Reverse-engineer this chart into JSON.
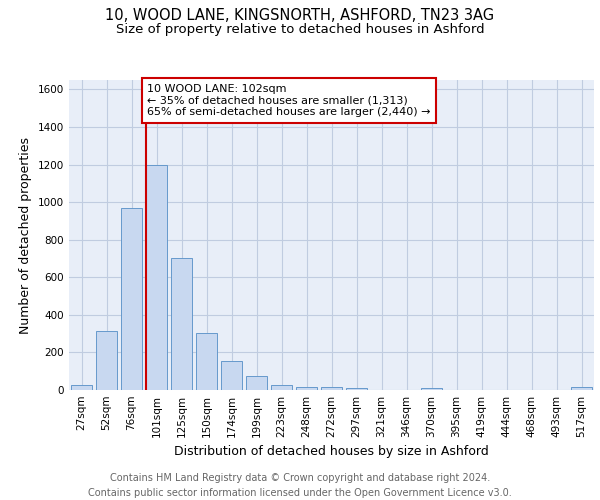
{
  "title1": "10, WOOD LANE, KINGSNORTH, ASHFORD, TN23 3AG",
  "title2": "Size of property relative to detached houses in Ashford",
  "xlabel": "Distribution of detached houses by size in Ashford",
  "ylabel": "Number of detached properties",
  "categories": [
    "27sqm",
    "52sqm",
    "76sqm",
    "101sqm",
    "125sqm",
    "150sqm",
    "174sqm",
    "199sqm",
    "223sqm",
    "248sqm",
    "272sqm",
    "297sqm",
    "321sqm",
    "346sqm",
    "370sqm",
    "395sqm",
    "419sqm",
    "444sqm",
    "468sqm",
    "493sqm",
    "517sqm"
  ],
  "values": [
    25,
    315,
    970,
    1200,
    700,
    305,
    155,
    75,
    25,
    18,
    15,
    10,
    0,
    0,
    12,
    0,
    0,
    0,
    0,
    0,
    18
  ],
  "bar_color": "#c8d8f0",
  "bar_edge_color": "#6699cc",
  "annotation_text": "10 WOOD LANE: 102sqm\n← 35% of detached houses are smaller (1,313)\n65% of semi-detached houses are larger (2,440) →",
  "vline_color": "#cc0000",
  "vline_x_index": 3,
  "ylim_max": 1650,
  "yticks": [
    0,
    200,
    400,
    600,
    800,
    1000,
    1200,
    1400,
    1600
  ],
  "plot_bg_color": "#e8eef8",
  "grid_color": "#c0cce0",
  "title1_fontsize": 10.5,
  "title2_fontsize": 9.5,
  "axis_label_fontsize": 9,
  "tick_fontsize": 7.5,
  "annot_fontsize": 8,
  "footer_fontsize": 7,
  "footer_line1": "Contains HM Land Registry data © Crown copyright and database right 2024.",
  "footer_line2": "Contains public sector information licensed under the Open Government Licence v3.0."
}
